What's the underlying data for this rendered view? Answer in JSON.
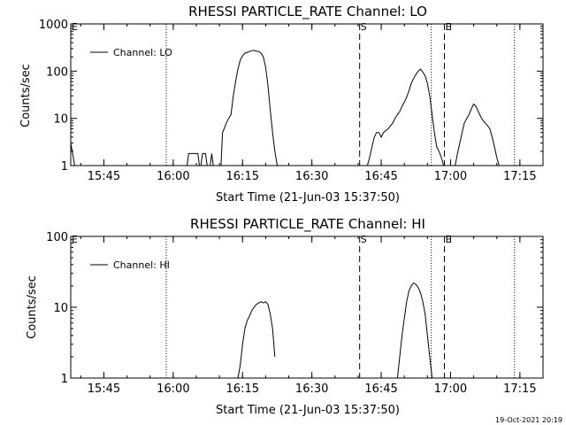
{
  "footer": {
    "timestamp": "19-Oct-2021 20:19"
  },
  "chart_data": [
    {
      "type": "line",
      "title": "RHESSI PARTICLE_RATE Channel: LO",
      "xlabel": "Start Time (21-Jun-03 15:37:50)",
      "ylabel": "Counts/sec",
      "yscale": "log",
      "xlim": [
        "15:37:50",
        "17:20:00"
      ],
      "ylim": [
        1,
        1000
      ],
      "x_ticks": [
        "15:45",
        "16:00",
        "16:15",
        "16:30",
        "16:45",
        "17:00",
        "17:15"
      ],
      "y_ticks": [
        "1",
        "10",
        "100",
        "1000"
      ],
      "legend": {
        "position": "top-left",
        "entries": [
          "Channel: LO"
        ]
      },
      "markers": {
        "dotted": [
          "15:58:30",
          "16:55:50",
          "17:13:50"
        ],
        "dashed": [
          {
            "time": "16:40:20",
            "label": "S"
          },
          {
            "time": "16:58:40",
            "label": "E"
          }
        ],
        "left_edge_label": "E"
      },
      "series": [
        {
          "name": "Channel: LO",
          "segments": [
            {
              "x": [
                "15:37:50",
                "15:38:20",
                "15:38:40"
              ],
              "y": [
                3,
                1.6,
                1
              ]
            },
            {
              "x": [
                "16:03:00",
                "16:03:20",
                "16:05:20",
                "16:05:40"
              ],
              "y": [
                1,
                1.8,
                1.8,
                1
              ]
            },
            {
              "x": [
                "16:06:00",
                "16:06:20",
                "16:07:00",
                "16:07:20"
              ],
              "y": [
                1,
                1.8,
                1.8,
                1
              ]
            },
            {
              "x": [
                "16:08:00",
                "16:08:20",
                "16:08:40"
              ],
              "y": [
                1,
                1.8,
                1
              ]
            },
            {
              "x": [
                "16:10:20",
                "16:10:40",
                "16:11:00",
                "16:11:30",
                "16:12:00",
                "16:12:30",
                "16:13:00",
                "16:13:30",
                "16:14:00",
                "16:14:30",
                "16:15:00",
                "16:15:30",
                "16:16:00",
                "16:16:30",
                "16:17:00",
                "16:17:30",
                "16:18:00",
                "16:18:30",
                "16:19:00",
                "16:19:30",
                "16:20:00",
                "16:20:30",
                "16:21:00",
                "16:21:30",
                "16:22:00",
                "16:22:30"
              ],
              "y": [
                1,
                5,
                6,
                8,
                10,
                12,
                30,
                60,
                110,
                170,
                210,
                240,
                250,
                260,
                270,
                275,
                265,
                260,
                240,
                200,
                120,
                50,
                15,
                5,
                2,
                1
              ]
            },
            {
              "x": [
                "16:42:00",
                "16:42:30",
                "16:43:00",
                "16:43:30",
                "16:44:00",
                "16:44:30",
                "16:45:00",
                "16:45:30",
                "16:46:00",
                "16:46:30",
                "16:47:00",
                "16:47:30",
                "16:48:00",
                "16:48:30",
                "16:49:00",
                "16:49:30",
                "16:50:00",
                "16:50:30",
                "16:51:00",
                "16:51:30",
                "16:52:00",
                "16:52:30",
                "16:53:00",
                "16:53:30",
                "16:54:00",
                "16:54:30",
                "16:55:00",
                "16:55:30",
                "16:56:00",
                "16:56:30",
                "16:57:00",
                "16:57:30",
                "16:58:00",
                "16:58:30"
              ],
              "y": [
                1,
                1.5,
                2.5,
                4,
                5,
                5,
                4,
                5,
                5.5,
                6,
                7,
                8,
                10,
                12,
                14,
                18,
                22,
                28,
                38,
                55,
                70,
                85,
                100,
                110,
                95,
                80,
                55,
                30,
                12,
                5,
                2.5,
                2,
                1.5,
                1
              ]
            },
            {
              "x": [
                "17:01:00",
                "17:01:30",
                "17:02:00",
                "17:02:30",
                "17:03:00",
                "17:03:30",
                "17:04:00",
                "17:04:30",
                "17:05:00",
                "17:05:30",
                "17:06:00",
                "17:06:30",
                "17:07:00",
                "17:07:30",
                "17:08:00",
                "17:08:30",
                "17:09:00",
                "17:09:30",
                "17:10:00",
                "17:10:30"
              ],
              "y": [
                1,
                1.8,
                3,
                5,
                8,
                10,
                12,
                16,
                20,
                18,
                14,
                11,
                9,
                8,
                7,
                6,
                4,
                2.5,
                1.5,
                1
              ]
            }
          ]
        }
      ]
    },
    {
      "type": "line",
      "title": "RHESSI PARTICLE_RATE Channel: HI",
      "xlabel": "Start Time (21-Jun-03 15:37:50)",
      "ylabel": "Counts/sec",
      "yscale": "log",
      "xlim": [
        "15:37:50",
        "17:20:00"
      ],
      "ylim": [
        1,
        100
      ],
      "x_ticks": [
        "15:45",
        "16:00",
        "16:15",
        "16:30",
        "16:45",
        "17:00",
        "17:15"
      ],
      "y_ticks": [
        "1",
        "10",
        "100"
      ],
      "legend": {
        "position": "top-left",
        "entries": [
          "Channel: HI"
        ]
      },
      "markers": {
        "dotted": [
          "15:58:30",
          "16:55:50",
          "17:13:50"
        ],
        "dashed": [
          {
            "time": "16:40:20",
            "label": "S"
          },
          {
            "time": "16:58:40",
            "label": "E"
          }
        ],
        "left_edge_label": "E"
      },
      "series": [
        {
          "name": "Channel: HI",
          "segments": [
            {
              "x": [
                "16:14:00",
                "16:14:30",
                "16:15:00",
                "16:15:30",
                "16:16:00",
                "16:16:30",
                "16:17:00",
                "16:17:30",
                "16:18:00",
                "16:18:30",
                "16:19:00",
                "16:19:30",
                "16:20:00",
                "16:20:30",
                "16:21:00",
                "16:21:30",
                "16:22:00"
              ],
              "y": [
                1,
                1.5,
                3,
                5,
                6.5,
                7.5,
                9,
                10,
                11,
                11.5,
                12,
                11.5,
                12,
                11,
                8,
                5,
                2
              ]
            },
            {
              "x": [
                "16:48:30",
                "16:49:00",
                "16:49:30",
                "16:50:00",
                "16:50:30",
                "16:51:00",
                "16:51:30",
                "16:52:00",
                "16:52:30",
                "16:53:00",
                "16:53:30",
                "16:54:00",
                "16:54:30",
                "16:55:00",
                "16:55:30",
                "16:56:00"
              ],
              "y": [
                1,
                2,
                4,
                7,
                12,
                17,
                20,
                22,
                21,
                19,
                16,
                12,
                8,
                4,
                2,
                1
              ]
            }
          ]
        }
      ]
    }
  ]
}
